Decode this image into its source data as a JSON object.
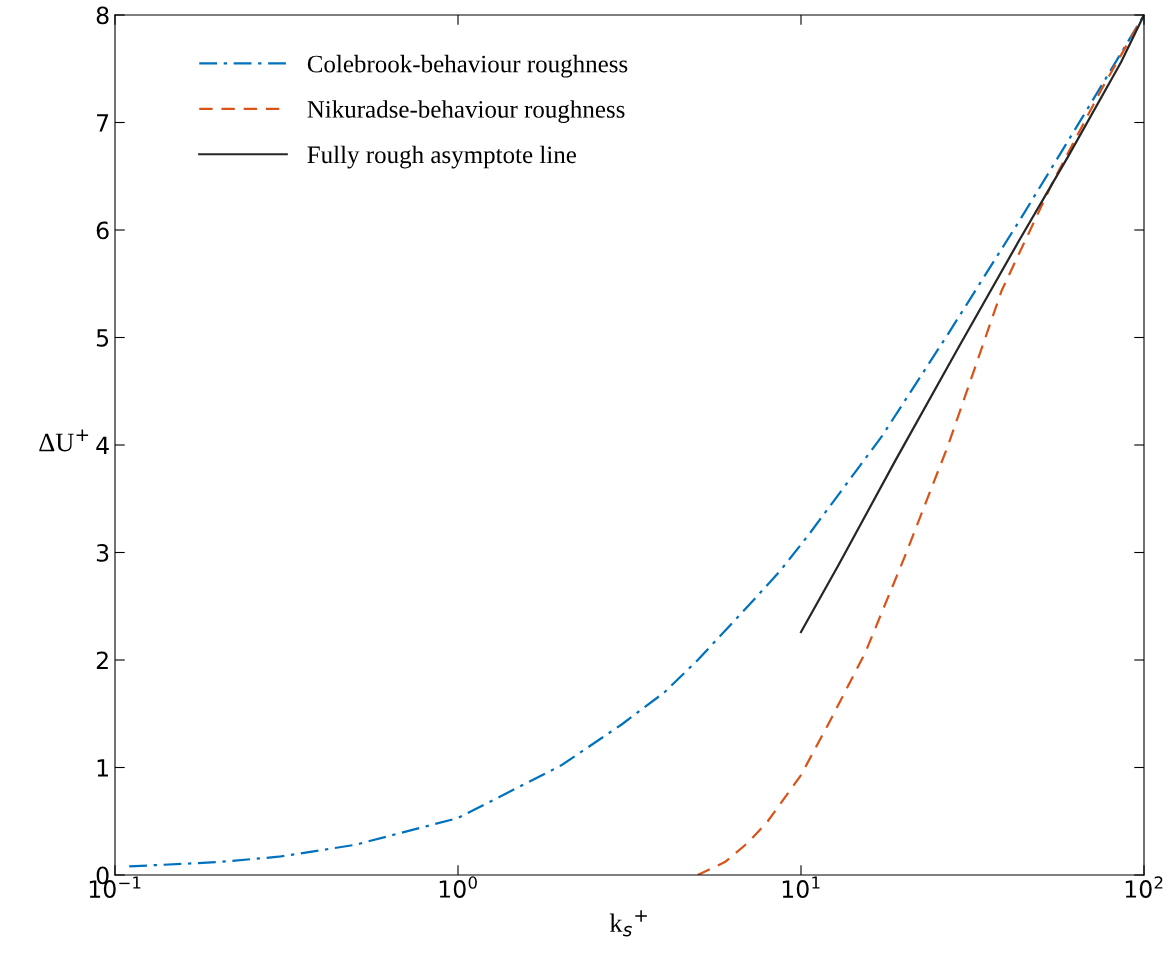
{
  "chart_data": {
    "type": "line",
    "xlabel": "k$_{s}$$^{+}$",
    "ylabel": "ΔU$^{+}$",
    "log": "x",
    "xlim": [
      0.1,
      100
    ],
    "ylim": [
      0,
      8
    ],
    "xticks": [
      {
        "value": 0.1,
        "label": "10$^{−1}$"
      },
      {
        "value": 1,
        "label": "10$^{0}$"
      },
      {
        "value": 10,
        "label": "10$^{1}$"
      },
      {
        "value": 100,
        "label": "10$^{2}$"
      }
    ],
    "yticks": [
      0,
      1,
      2,
      3,
      4,
      5,
      6,
      7,
      8
    ],
    "grid": false,
    "legend": "top left",
    "marker": "none",
    "series": [
      {
        "name": "Colebrook-behaviour roughness",
        "color": "#0072bd",
        "line_style": "dashdot",
        "x": [
          0.11,
          0.2,
          0.3,
          0.5,
          1,
          2,
          3,
          4,
          5,
          7,
          8.7,
          10.5,
          17.2,
          26.8,
          43.8,
          65.9,
          100
        ],
        "values": [
          0.08,
          0.12,
          0.17,
          0.28,
          0.53,
          1.02,
          1.4,
          1.7,
          2.0,
          2.5,
          2.83,
          3.16,
          4.08,
          5.03,
          6.11,
          7.04,
          8.0
        ]
      },
      {
        "name": "Nikuradse-behaviour roughness",
        "color": "#d95319",
        "line_style": "dashed",
        "x": [
          5,
          6,
          7,
          8,
          10,
          12,
          15.4,
          20,
          26.8,
          38.5,
          54.3,
          75.5,
          100
        ],
        "values": [
          0,
          0.12,
          0.3,
          0.5,
          0.93,
          1.4,
          2.07,
          2.95,
          3.99,
          5.44,
          6.45,
          7.32,
          8.0
        ]
      },
      {
        "name": "Fully rough asymptote line",
        "color": "#262626",
        "line_style": "solid",
        "x": [
          10,
          12.9,
          18.8,
          28.7,
          43.2,
          60,
          85.7,
          100
        ],
        "values": [
          2.26,
          2.89,
          3.85,
          4.9,
          5.9,
          6.68,
          7.56,
          8.0
        ]
      }
    ]
  }
}
